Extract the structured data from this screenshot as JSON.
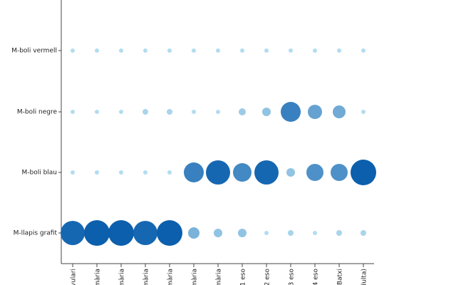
{
  "chart_data": {
    "type": "bubble",
    "categories": [
      "rvulari",
      "imària",
      "imària",
      "imària",
      "imària",
      "imària",
      "imària",
      "1 eso",
      "2 eso",
      "3 eso",
      "4 eso",
      "Batxi",
      "dulta)"
    ],
    "series": [
      {
        "name": "M-boli vermell",
        "values": [
          3,
          3,
          3,
          3,
          3,
          3,
          3,
          3,
          3,
          3,
          3,
          3,
          3
        ]
      },
      {
        "name": "M-boli negre",
        "values": [
          3,
          3,
          3,
          4,
          4,
          3,
          3,
          5,
          6,
          14,
          10,
          9,
          3
        ]
      },
      {
        "name": "M-boli blau",
        "values": [
          3,
          3,
          3,
          3,
          3,
          14,
          17,
          13,
          17,
          6,
          12,
          12,
          18
        ]
      },
      {
        "name": "M-llapis grafit",
        "values": [
          17,
          18,
          18,
          17,
          18,
          8,
          6,
          6,
          3,
          4,
          3,
          4,
          4
        ]
      }
    ]
  }
}
